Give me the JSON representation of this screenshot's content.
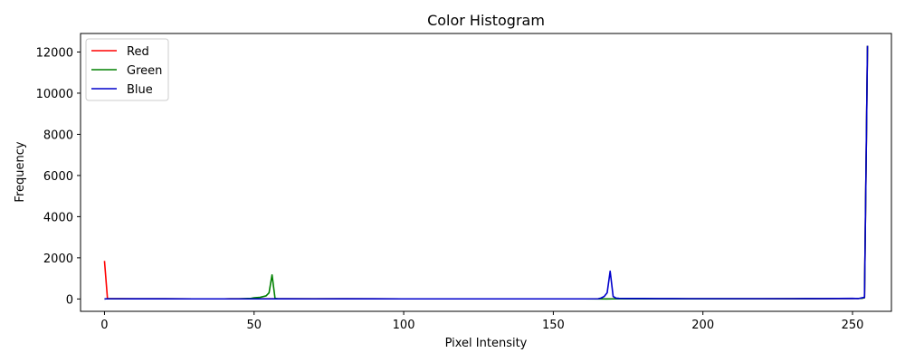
{
  "chart_data": {
    "type": "line",
    "title": "Color Histogram",
    "xlabel": "Pixel Intensity",
    "ylabel": "Frequency",
    "xlim": [
      -8,
      263
    ],
    "ylim": [
      -600,
      12900
    ],
    "x_ticks": [
      0,
      50,
      100,
      150,
      200,
      250
    ],
    "y_ticks": [
      0,
      2000,
      4000,
      6000,
      8000,
      10000,
      12000
    ],
    "grid": false,
    "legend_position": "top-left",
    "series": [
      {
        "name": "Red",
        "color": "#ff0000",
        "points": [
          [
            0,
            1850
          ],
          [
            1,
            20
          ],
          [
            2,
            15
          ],
          [
            5,
            12
          ],
          [
            10,
            8
          ],
          [
            20,
            6
          ],
          [
            30,
            5
          ],
          [
            40,
            5
          ],
          [
            50,
            8
          ],
          [
            60,
            6
          ],
          [
            80,
            8
          ],
          [
            100,
            5
          ],
          [
            120,
            5
          ],
          [
            140,
            5
          ],
          [
            160,
            5
          ],
          [
            180,
            8
          ],
          [
            200,
            8
          ],
          [
            220,
            10
          ],
          [
            240,
            15
          ],
          [
            250,
            25
          ],
          [
            253,
            30
          ],
          [
            254,
            60
          ],
          [
            255,
            12300
          ]
        ]
      },
      {
        "name": "Green",
        "color": "#008000",
        "points": [
          [
            0,
            0
          ],
          [
            1,
            10
          ],
          [
            5,
            10
          ],
          [
            10,
            8
          ],
          [
            20,
            6
          ],
          [
            30,
            5
          ],
          [
            40,
            5
          ],
          [
            45,
            10
          ],
          [
            49,
            30
          ],
          [
            50,
            60
          ],
          [
            52,
            80
          ],
          [
            54,
            150
          ],
          [
            55,
            300
          ],
          [
            56,
            1170
          ],
          [
            57,
            30
          ],
          [
            58,
            10
          ],
          [
            60,
            8
          ],
          [
            80,
            6
          ],
          [
            100,
            5
          ],
          [
            120,
            5
          ],
          [
            140,
            5
          ],
          [
            160,
            5
          ],
          [
            168,
            3
          ],
          [
            170,
            5
          ],
          [
            180,
            8
          ],
          [
            200,
            8
          ],
          [
            220,
            10
          ],
          [
            240,
            15
          ],
          [
            250,
            25
          ],
          [
            253,
            30
          ],
          [
            254,
            60
          ],
          [
            255,
            12300
          ]
        ]
      },
      {
        "name": "Blue",
        "color": "#0000cc",
        "points": [
          [
            0,
            0
          ],
          [
            1,
            10
          ],
          [
            5,
            10
          ],
          [
            10,
            8
          ],
          [
            20,
            6
          ],
          [
            30,
            5
          ],
          [
            40,
            5
          ],
          [
            50,
            5
          ],
          [
            60,
            6
          ],
          [
            70,
            5
          ],
          [
            80,
            8
          ],
          [
            90,
            6
          ],
          [
            100,
            5
          ],
          [
            110,
            5
          ],
          [
            120,
            5
          ],
          [
            130,
            5
          ],
          [
            140,
            5
          ],
          [
            150,
            5
          ],
          [
            160,
            5
          ],
          [
            165,
            10
          ],
          [
            166,
            50
          ],
          [
            167,
            120
          ],
          [
            168,
            300
          ],
          [
            169,
            1350
          ],
          [
            170,
            120
          ],
          [
            171,
            40
          ],
          [
            172,
            30
          ],
          [
            175,
            25
          ],
          [
            180,
            25
          ],
          [
            185,
            20
          ],
          [
            190,
            20
          ],
          [
            195,
            15
          ],
          [
            200,
            15
          ],
          [
            210,
            15
          ],
          [
            220,
            15
          ],
          [
            230,
            15
          ],
          [
            240,
            20
          ],
          [
            245,
            25
          ],
          [
            250,
            30
          ],
          [
            252,
            20
          ],
          [
            253,
            50
          ],
          [
            254,
            80
          ],
          [
            255,
            12300
          ]
        ]
      }
    ]
  }
}
